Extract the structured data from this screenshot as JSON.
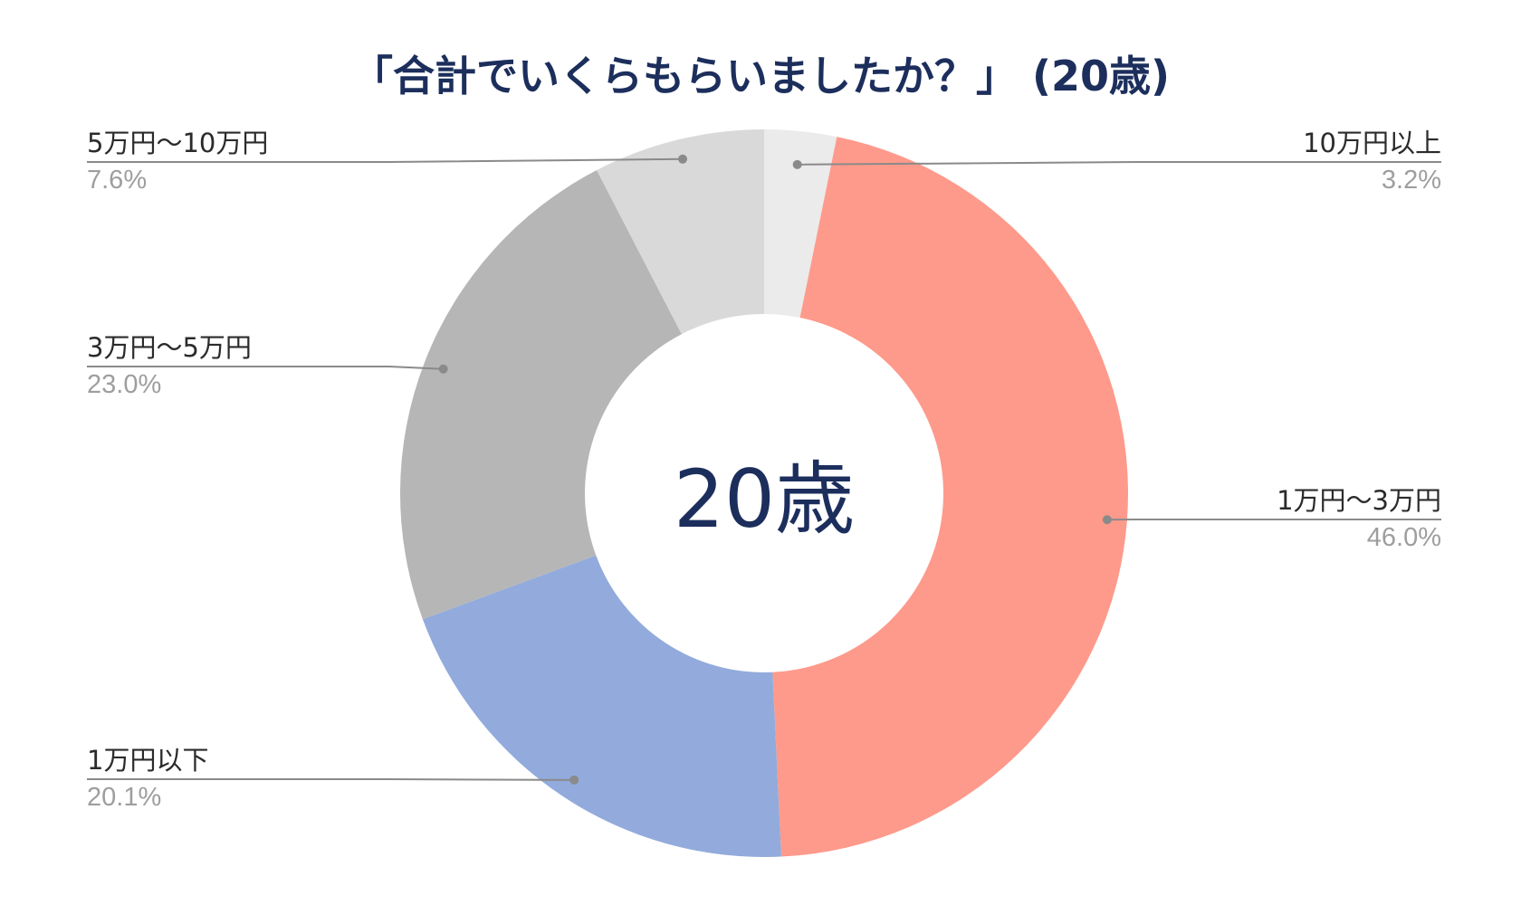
{
  "chart_data": {
    "type": "pie",
    "donut": true,
    "title": "「合計でいくらもらいましたか？」 (20歳)",
    "center_label": "20歳",
    "unit": "%",
    "start_angle_deg": 0,
    "direction": "clockwise",
    "slices": [
      {
        "label": "10万円以上",
        "value": 3.2,
        "display": "3.2%",
        "color": "#ebebeb"
      },
      {
        "label": "1万円〜3万円",
        "value": 46.0,
        "display": "46.0%",
        "color": "#fe9a8b"
      },
      {
        "label": "1万円以下",
        "value": 20.1,
        "display": "20.1%",
        "color": "#92abdc"
      },
      {
        "label": "3万円〜5万円",
        "value": 23.0,
        "display": "23.0%",
        "color": "#b6b6b6"
      },
      {
        "label": "5万円〜10万円",
        "value": 7.6,
        "display": "7.6%",
        "color": "#d9d9d9"
      }
    ]
  }
}
